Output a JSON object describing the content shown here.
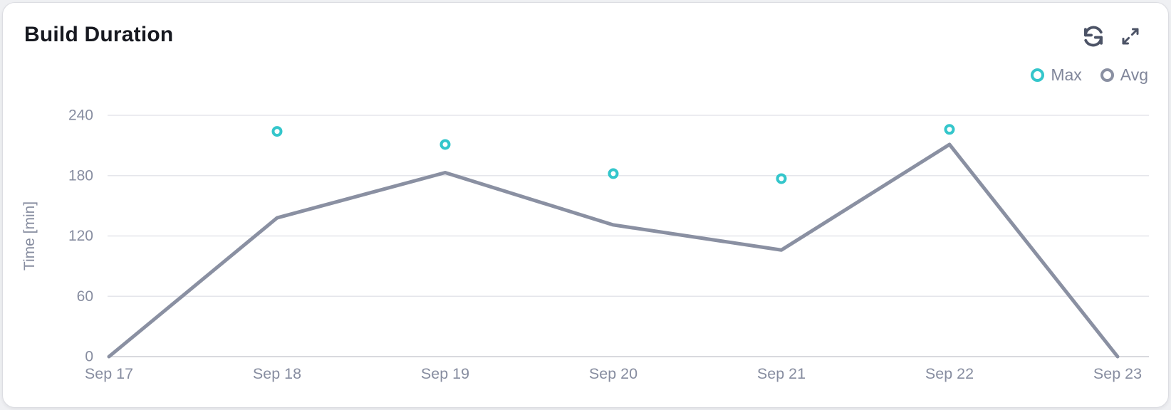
{
  "header": {
    "title": "Build Duration",
    "actions": [
      {
        "icon": "refresh-icon"
      },
      {
        "icon": "expand-icon"
      }
    ]
  },
  "chart_data": {
    "type": "line",
    "title": "Build Duration",
    "xlabel": "",
    "ylabel": "Time [min]",
    "categories": [
      "Sep 17",
      "Sep 18",
      "Sep 19",
      "Sep 20",
      "Sep 21",
      "Sep 22",
      "Sep 23"
    ],
    "series": [
      {
        "name": "Max",
        "type": "scatter",
        "marker": "ring",
        "color": "#34C6CB",
        "values": [
          null,
          224,
          211,
          182,
          177,
          226,
          null
        ]
      },
      {
        "name": "Avg",
        "type": "line",
        "marker": "ring",
        "color": "#8A90A2",
        "values": [
          0,
          138,
          183,
          131,
          106,
          211,
          0
        ]
      }
    ],
    "ylim": [
      0,
      240
    ],
    "yticks": [
      0,
      60,
      120,
      180,
      240
    ],
    "grid": true,
    "legend_position": "top-right",
    "axis_text_color": "#878DA0",
    "grid_color": "#E5E6EB",
    "baseline_color": "#D8D9DE"
  }
}
